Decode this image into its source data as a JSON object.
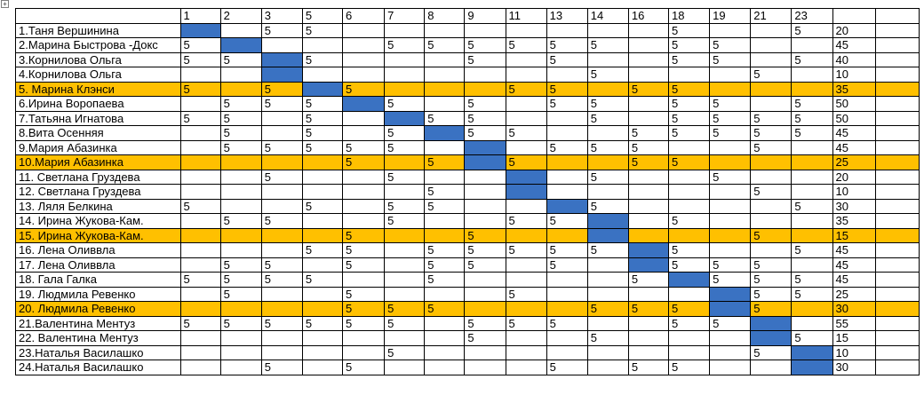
{
  "header": [
    "1",
    "2",
    "3",
    "5",
    "6",
    "7",
    "8",
    "9",
    "11",
    "13",
    "14",
    "16",
    "18",
    "19",
    "21",
    "23"
  ],
  "rows": [
    {
      "name": "1.Таня Вершинина",
      "cells": [
        "",
        "",
        "5",
        "5",
        "",
        "",
        "",
        "",
        "",
        "",
        "",
        "",
        "5",
        "",
        "",
        "5"
      ],
      "total": "20",
      "highlight": false,
      "diag": 0
    },
    {
      "name": "2.Марина Быстрова -Докс",
      "cells": [
        "5",
        "",
        "",
        "",
        "",
        "5",
        "5",
        "5",
        "5",
        "5",
        "5",
        "",
        "5",
        "5",
        "",
        ""
      ],
      "total": "45",
      "highlight": false,
      "diag": 1
    },
    {
      "name": "3.Корнилова Ольга",
      "cells": [
        "5",
        "5",
        "",
        "5",
        "",
        "",
        "",
        "5",
        "",
        "5",
        "",
        "",
        "5",
        "5",
        "",
        "5"
      ],
      "total": "40",
      "highlight": false,
      "diag": 2
    },
    {
      "name": "4.Корнилова Ольга",
      "cells": [
        "",
        "",
        "",
        "",
        "",
        "",
        "",
        "",
        "",
        "",
        "5",
        "",
        "",
        "",
        "5",
        ""
      ],
      "total": "10",
      "highlight": false,
      "diag": 2
    },
    {
      "name": "5. Марина Клэнси",
      "cells": [
        "5",
        "",
        "5",
        "",
        "5",
        "",
        "",
        "",
        "5",
        "5",
        "",
        "5",
        "5",
        "",
        "",
        ""
      ],
      "total": "35",
      "highlight": true,
      "diag": 3
    },
    {
      "name": "6.Ирина Воропаева",
      "cells": [
        "",
        "5",
        "5",
        "5",
        "",
        "5",
        "",
        "5",
        "",
        "5",
        "5",
        "",
        "5",
        "5",
        "",
        "5"
      ],
      "total": "50",
      "highlight": false,
      "diag": 4
    },
    {
      "name": "7.Татьяна Игнатова",
      "cells": [
        "5",
        "5",
        "",
        "5",
        "",
        "",
        "5",
        "5",
        "",
        "",
        "5",
        "",
        "5",
        "5",
        "5",
        "5"
      ],
      "total": "50",
      "highlight": false,
      "diag": 5
    },
    {
      "name": "8.Вита Осенняя",
      "cells": [
        "",
        "5",
        "",
        "5",
        "",
        "5",
        "",
        "5",
        "5",
        "",
        "",
        "5",
        "5",
        "5",
        "5",
        "5"
      ],
      "total": "45",
      "highlight": false,
      "diag": 6
    },
    {
      "name": "9.Мария Абазинка",
      "cells": [
        "",
        "5",
        "5",
        "5",
        "5",
        "5",
        "",
        "",
        "",
        "5",
        "5",
        "5",
        "",
        "",
        "5",
        ""
      ],
      "total": "45",
      "highlight": false,
      "diag": 7
    },
    {
      "name": "10.Мария Абазинка",
      "cells": [
        "",
        "",
        "",
        "",
        "5",
        "",
        "5",
        "",
        "5",
        "",
        "",
        "5",
        "5",
        "",
        "",
        ""
      ],
      "total": "25",
      "highlight": true,
      "diag": 7
    },
    {
      "name": "11. Светлана Груздева",
      "cells": [
        "",
        "",
        "5",
        "",
        "",
        "5",
        "",
        "",
        "",
        "",
        "5",
        "",
        "",
        "5",
        "",
        ""
      ],
      "total": "20",
      "highlight": false,
      "diag": 8
    },
    {
      "name": "12. Светлана Груздева",
      "cells": [
        "",
        "",
        "",
        "",
        "",
        "",
        "5",
        "",
        "",
        "",
        "",
        "",
        "",
        "",
        "5",
        ""
      ],
      "total": "10",
      "highlight": false,
      "diag": 8
    },
    {
      "name": "13. Ляля Белкина",
      "cells": [
        "5",
        "",
        "",
        "5",
        "",
        "5",
        "5",
        "",
        "",
        "",
        "5",
        "",
        "",
        "",
        "",
        "5"
      ],
      "total": "30",
      "highlight": false,
      "diag": 9
    },
    {
      "name": "14. Ирина Жукова-Кам.",
      "cells": [
        "",
        "5",
        "5",
        "",
        "",
        "5",
        "",
        "",
        "5",
        "5",
        "",
        "",
        "5",
        "",
        "",
        ""
      ],
      "total": "35",
      "highlight": false,
      "diag": 10
    },
    {
      "name": "15. Ирина Жукова-Кам.",
      "cells": [
        "",
        "",
        "",
        "",
        "5",
        "",
        "",
        "5",
        "",
        "",
        "",
        "",
        "",
        "",
        "5",
        ""
      ],
      "total": "15",
      "highlight": true,
      "diag": 10
    },
    {
      "name": "16. Лена Оливвла",
      "cells": [
        "",
        "",
        "",
        "5",
        "5",
        "",
        "5",
        "5",
        "5",
        "5",
        "5",
        "",
        "5",
        "",
        "",
        "5"
      ],
      "total": "45",
      "highlight": false,
      "diag": 11
    },
    {
      "name": "17. Лена Оливвла",
      "cells": [
        "",
        "5",
        "5",
        "",
        "5",
        "",
        "5",
        "5",
        "",
        "5",
        "",
        "",
        "5",
        "5",
        "5",
        ""
      ],
      "total": "45",
      "highlight": false,
      "diag": 11
    },
    {
      "name": "18. Гала Галка",
      "cells": [
        "5",
        "5",
        "5",
        "5",
        "",
        "",
        "5",
        "",
        "",
        "",
        "",
        "5",
        "",
        "5",
        "5",
        "5"
      ],
      "total": "45",
      "highlight": false,
      "diag": 12
    },
    {
      "name": "19. Людмила Ревенко",
      "cells": [
        "",
        "5",
        "",
        "",
        "5",
        "",
        "",
        "",
        "5",
        "",
        "",
        "",
        "",
        "",
        "5",
        "5"
      ],
      "total": "25",
      "highlight": false,
      "diag": 13
    },
    {
      "name": "20. Людмила Ревенко",
      "cells": [
        "",
        "",
        "",
        "",
        "5",
        "5",
        "5",
        "",
        "",
        "",
        "5",
        "5",
        "5",
        "",
        "5",
        ""
      ],
      "total": "30",
      "highlight": true,
      "diag": 13
    },
    {
      "name": "21.Валентина Ментуз",
      "cells": [
        "5",
        "5",
        "5",
        "5",
        "5",
        "5",
        "",
        "5",
        "5",
        "5",
        "",
        "",
        "5",
        "5",
        "",
        ""
      ],
      "total": "55",
      "highlight": false,
      "diag": 14
    },
    {
      "name": "22. Валентина Ментуз",
      "cells": [
        "",
        "",
        "",
        "",
        "",
        "",
        "",
        "5",
        "",
        "",
        "5",
        "",
        "",
        "",
        "",
        "5"
      ],
      "total": "15",
      "highlight": false,
      "diag": 14
    },
    {
      "name": "23.Наталья Василашко",
      "cells": [
        "",
        "",
        "",
        "",
        "",
        "5",
        "",
        "",
        "",
        "",
        "",
        "",
        "",
        "",
        "5",
        ""
      ],
      "total": "10",
      "highlight": false,
      "diag": 15
    },
    {
      "name": "24.Наталья Василашко",
      "cells": [
        "",
        "",
        "5",
        "",
        "5",
        "",
        "",
        "",
        "",
        "5",
        "",
        "5",
        "5",
        "",
        "",
        ""
      ],
      "total": "30",
      "highlight": false,
      "diag": 15
    }
  ],
  "colors": {
    "highlight": "#ffc000",
    "diagonal": "#3a72c2"
  },
  "icons": {
    "table_handle": "move-cross-icon"
  }
}
